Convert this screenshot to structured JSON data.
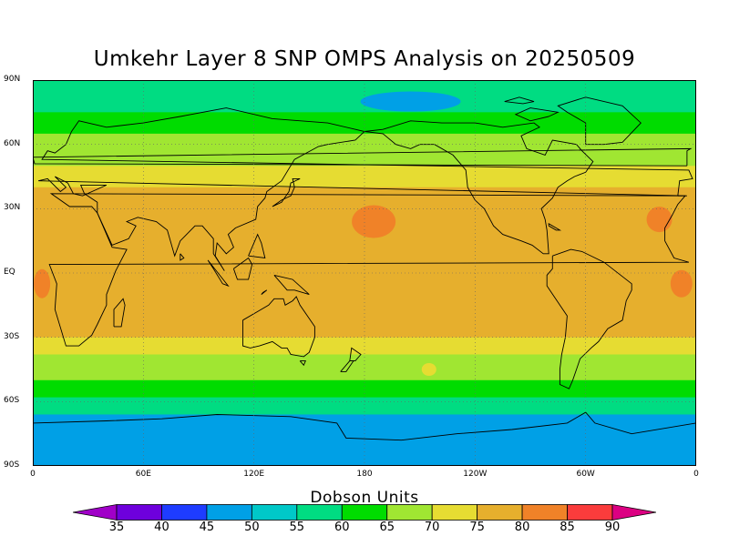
{
  "title": "Umkehr Layer 8 SNP OMPS Analysis on 20250509",
  "map": {
    "lat_labels": [
      "90N",
      "60N",
      "30N",
      "EQ",
      "30S",
      "60S",
      "90S"
    ],
    "lat_values": [
      90,
      60,
      30,
      0,
      -30,
      -60,
      -90
    ],
    "lon_labels": [
      "0",
      "60E",
      "120E",
      "180",
      "120W",
      "60W",
      "0"
    ],
    "lon_values": [
      0,
      60,
      120,
      180,
      240,
      300,
      360
    ],
    "bands": [
      {
        "lat_north": 90,
        "lat_south": 75,
        "value": 55
      },
      {
        "lat_north": 75,
        "lat_south": 65,
        "value": 60
      },
      {
        "lat_north": 65,
        "lat_south": 50,
        "value": 65
      },
      {
        "lat_north": 50,
        "lat_south": 40,
        "value": 70
      },
      {
        "lat_north": 40,
        "lat_south": -30,
        "value": 75
      },
      {
        "lat_north": -30,
        "lat_south": -38,
        "value": 70
      },
      {
        "lat_north": -38,
        "lat_south": -50,
        "value": 65
      },
      {
        "lat_north": -50,
        "lat_south": -58,
        "value": 60
      },
      {
        "lat_north": -58,
        "lat_south": -66,
        "value": 55
      },
      {
        "lat_north": -66,
        "lat_south": -90,
        "value": 45
      }
    ],
    "features": [
      {
        "lon": 205,
        "lat": 80,
        "value": 45
      },
      {
        "lon": 185,
        "lat": 24,
        "value": 80
      },
      {
        "lon": 340,
        "lat": 25,
        "value": 80
      },
      {
        "lon": 5,
        "lat": -5,
        "value": 80
      },
      {
        "lon": 352,
        "lat": -5,
        "value": 80
      },
      {
        "lon": 215,
        "lat": -45,
        "value": 70
      }
    ]
  },
  "colorbar": {
    "title": "Dobson Units",
    "levels": [
      35,
      40,
      45,
      50,
      55,
      60,
      65,
      70,
      75,
      80,
      85,
      90
    ],
    "colors": [
      "#a000c8",
      "#6e00dc",
      "#1e3cff",
      "#00a0e6",
      "#00c8c8",
      "#00dc82",
      "#00dc00",
      "#a0e632",
      "#e6dc32",
      "#e6af2d",
      "#f08228",
      "#fa3c3c",
      "#dc0082"
    ]
  }
}
